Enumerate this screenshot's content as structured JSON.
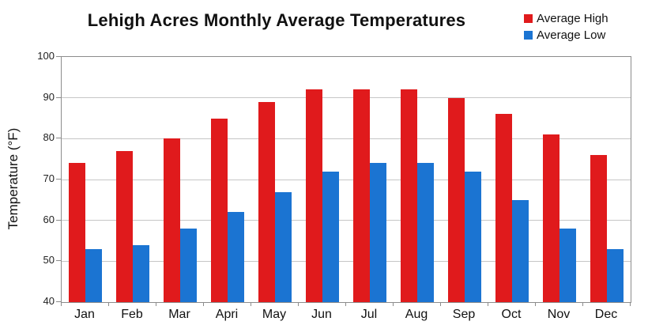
{
  "chart_data": {
    "type": "bar",
    "title": "Lehigh Acres Monthly Average Temperatures",
    "xlabel": "",
    "ylabel": "Temperature (°F)",
    "categories": [
      "Jan",
      "Feb",
      "Mar",
      "Apri",
      "May",
      "Jun",
      "Jul",
      "Aug",
      "Sep",
      "Oct",
      "Nov",
      "Dec"
    ],
    "series": [
      {
        "name": "Average High",
        "color": "#e01a1c",
        "values": [
          74,
          77,
          80,
          85,
          89,
          92,
          92,
          92,
          90,
          86,
          81,
          76
        ]
      },
      {
        "name": "Average Low",
        "color": "#1b74d2",
        "values": [
          53,
          54,
          58,
          62,
          67,
          72,
          74,
          74,
          72,
          65,
          58,
          53
        ]
      }
    ],
    "ylim": [
      40,
      100
    ],
    "yticks": [
      40,
      50,
      60,
      70,
      80,
      90,
      100
    ],
    "grid": true,
    "legend_position": "top-right"
  },
  "colors": {
    "background": "#ffffff",
    "grid": "#c6c6c6",
    "axis": "#8c8c8c",
    "text": "#111111"
  }
}
